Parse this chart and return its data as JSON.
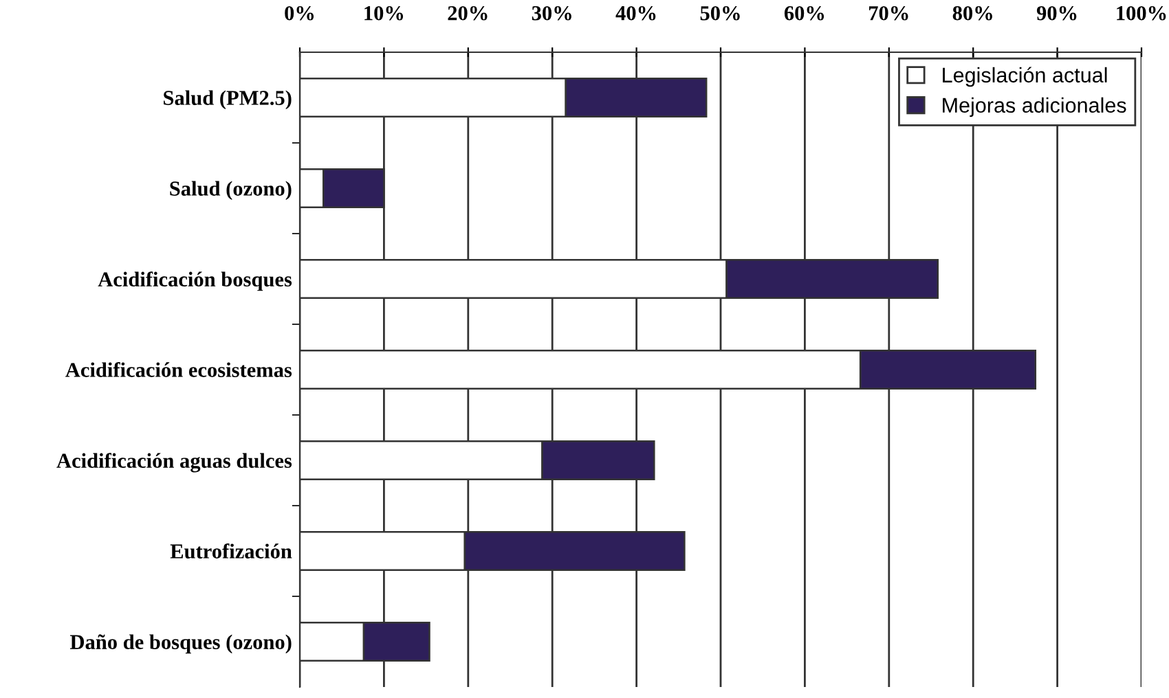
{
  "chart_data": {
    "type": "bar",
    "orientation": "horizontal",
    "stacked": true,
    "categories": [
      "Salud (PM2.5)",
      "Salud (ozono)",
      "Acidificación bosques",
      "Acidificación ecosistemas",
      "Acidificación aguas dulces",
      "Eutrofización",
      "Daño de bosques (ozono)"
    ],
    "series": [
      {
        "name": "Legislación actual",
        "color": "#ffffff",
        "values": [
          31.6,
          2.8,
          50.7,
          66.6,
          28.8,
          19.6,
          7.6
        ]
      },
      {
        "name": "Mejoras adicionales",
        "color": "#2e1f5a",
        "values": [
          16.7,
          7.2,
          25.1,
          20.8,
          13.3,
          26.1,
          7.8
        ]
      }
    ],
    "xlim": [
      0,
      100
    ],
    "xticks": [
      {
        "value": 0,
        "label": "0%"
      },
      {
        "value": 10,
        "label": "10%"
      },
      {
        "value": 20,
        "label": "20%"
      },
      {
        "value": 30,
        "label": "30%"
      },
      {
        "value": 40,
        "label": "40%"
      },
      {
        "value": 50,
        "label": "50%"
      },
      {
        "value": 60,
        "label": "60%"
      },
      {
        "value": 70,
        "label": "70%"
      },
      {
        "value": 80,
        "label": "80%"
      },
      {
        "value": 90,
        "label": "90%"
      },
      {
        "value": 100,
        "label": "100%"
      }
    ],
    "grid": "x",
    "legend": "top right"
  }
}
